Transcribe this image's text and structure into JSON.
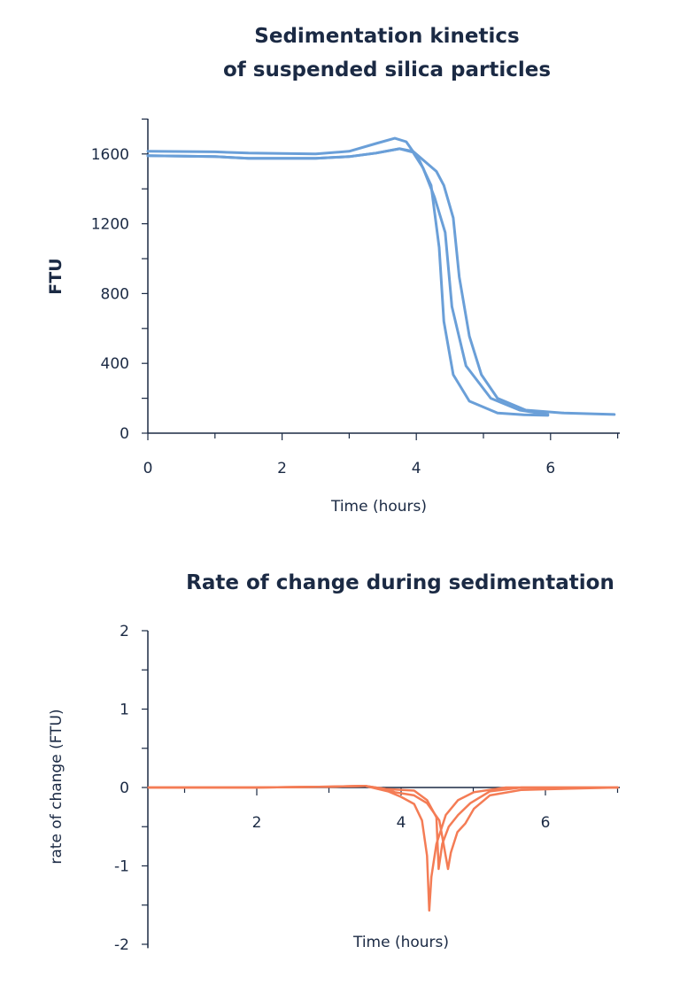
{
  "colors": {
    "axis": "#1b2a44",
    "kinetics": "#6a9fd8",
    "rate": "#f47c55"
  },
  "chart_data": [
    {
      "type": "line",
      "title_lines": [
        "Sedimentation kinetics",
        "of suspended silica particles"
      ],
      "xlabel": "Time (hours)",
      "ylabel": "FTU",
      "xlim": [
        0,
        7
      ],
      "ylim": [
        0,
        1600
      ],
      "xticks": [
        0,
        2,
        4,
        6
      ],
      "yticks": [
        0,
        400,
        800,
        1200,
        1600
      ],
      "xtick_labels": [
        "0",
        "2",
        "4",
        "6"
      ],
      "ytick_labels": [
        "0",
        "400",
        "800",
        "1200",
        "1600"
      ],
      "grid": false,
      "series": [
        {
          "x": [
            0,
            1,
            1.5,
            2.5,
            3,
            3.4,
            3.68,
            3.85,
            4.05,
            4.22,
            4.34,
            4.41,
            4.55,
            4.79,
            5.21,
            5.6,
            5.96
          ],
          "y": [
            1615,
            1612,
            1605,
            1600,
            1615,
            1660,
            1690,
            1670,
            1560,
            1420,
            1064,
            640,
            335,
            183,
            115,
            105,
            102
          ]
        },
        {
          "x": [
            0,
            1,
            1.5,
            2.5,
            3,
            3.4,
            3.75,
            3.95,
            4.1,
            4.27,
            4.43,
            4.53,
            4.74,
            5.11,
            5.54,
            5.96
          ],
          "y": [
            1590,
            1585,
            1575,
            1575,
            1585,
            1605,
            1630,
            1610,
            1520,
            1353,
            1150,
            725,
            386,
            200,
            132,
            107
          ]
        },
        {
          "x": [
            0,
            1,
            1.5,
            2.5,
            3,
            3.4,
            3.75,
            3.95,
            4.13,
            4.3,
            4.41,
            4.55,
            4.64,
            4.79,
            4.97,
            5.21,
            5.63,
            6.2,
            6.95
          ],
          "y": [
            1590,
            1585,
            1575,
            1575,
            1585,
            1605,
            1630,
            1615,
            1556,
            1500,
            1420,
            1234,
            895,
            556,
            335,
            200,
            132,
            115,
            107
          ]
        }
      ]
    },
    {
      "type": "line",
      "title": "Rate of change during sedimentation",
      "xlabel": "Time (hours)",
      "ylabel": "rate of change (FTU)",
      "xlim": [
        0.5,
        7
      ],
      "ylim": [
        -2,
        2
      ],
      "xticks": [
        2,
        4,
        6
      ],
      "yticks": [
        -2,
        -1,
        0,
        1,
        2
      ],
      "xtick_labels": [
        "2",
        "4",
        "6"
      ],
      "ytick_labels": [
        "-2",
        "-1",
        "0",
        "1",
        "2"
      ],
      "grid": false,
      "series": [
        {
          "x": [
            0.5,
            2,
            3,
            3.5,
            3.82,
            4,
            4.18,
            4.29,
            4.36,
            4.39,
            4.42,
            4.49,
            4.62,
            4.79,
            5.01,
            5.45,
            7
          ],
          "y": [
            0,
            0,
            0.01,
            0.02,
            -0.05,
            -0.12,
            -0.21,
            -0.42,
            -0.87,
            -1.57,
            -1.14,
            -0.72,
            -0.35,
            -0.16,
            -0.06,
            0,
            0
          ]
        },
        {
          "x": [
            0.5,
            2,
            3,
            3.5,
            3.8,
            4.18,
            4.36,
            4.49,
            4.52,
            4.57,
            4.66,
            4.79,
            4.96,
            5.23,
            5.67,
            7
          ],
          "y": [
            0,
            0,
            0.01,
            0.02,
            -0.02,
            -0.04,
            -0.16,
            -0.38,
            -1.04,
            -0.72,
            -0.5,
            -0.35,
            -0.2,
            -0.05,
            0,
            0
          ]
        },
        {
          "x": [
            0.5,
            2,
            3,
            3.5,
            3.8,
            3.91,
            4.18,
            4.36,
            4.53,
            4.65,
            4.69,
            4.78,
            4.89,
            5.01,
            5.23,
            5.67,
            7
          ],
          "y": [
            0,
            0,
            0.01,
            0.02,
            -0.02,
            -0.06,
            -0.1,
            -0.2,
            -0.42,
            -1.04,
            -0.83,
            -0.57,
            -0.46,
            -0.27,
            -0.1,
            -0.03,
            0
          ]
        }
      ]
    }
  ]
}
